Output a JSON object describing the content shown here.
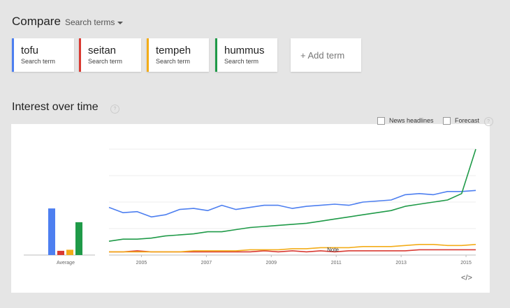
{
  "header": {
    "compare_title": "Compare",
    "search_terms_label": "Search terms"
  },
  "terms": [
    {
      "name": "tofu",
      "sub": "Search term",
      "color": "#4d7ff0"
    },
    {
      "name": "seitan",
      "sub": "Search term",
      "color": "#d93a32"
    },
    {
      "name": "tempeh",
      "sub": "Search term",
      "color": "#f3ac18"
    },
    {
      "name": "hummus",
      "sub": "Search term",
      "color": "#1f9a48"
    }
  ],
  "add_term_label": "+ Add term",
  "section": {
    "title": "Interest over time",
    "help": "?"
  },
  "options": {
    "news_headlines": "News headlines",
    "forecast": "Forecast",
    "forecast_help": "?"
  },
  "embed_label": "</>",
  "chart_data": {
    "type": "line",
    "x_start": 2004.0,
    "x_end": 2015.3,
    "ylim": [
      0,
      100
    ],
    "gridlines": true,
    "x_ticks": [
      "2005",
      "2007",
      "2009",
      "2011",
      "2013",
      "2015"
    ],
    "x_tick_values": [
      2005,
      2007,
      2009,
      2011,
      2013,
      2015
    ],
    "note": {
      "label": "Note",
      "x": 2010.9
    },
    "average": {
      "label": "Average",
      "values": [
        44,
        4,
        5,
        31
      ]
    },
    "series": [
      {
        "color": "#4d7ff0",
        "values": [
          45,
          40,
          41,
          36,
          38,
          43,
          44,
          42,
          47,
          43,
          45,
          47,
          47,
          44,
          46,
          47,
          48,
          47,
          50,
          51,
          52,
          57,
          58,
          57,
          60,
          60,
          61
        ]
      },
      {
        "color": "#d93a32",
        "values": [
          3,
          3,
          4,
          3,
          3,
          3,
          3,
          3,
          3,
          3,
          3,
          4,
          3,
          4,
          3,
          4,
          3,
          4,
          4,
          4,
          4,
          4,
          5,
          5,
          5,
          5,
          5
        ]
      },
      {
        "color": "#f3ac18",
        "values": [
          3,
          3,
          3,
          3,
          3,
          3,
          4,
          4,
          4,
          4,
          5,
          5,
          5,
          6,
          6,
          7,
          7,
          7,
          8,
          8,
          8,
          9,
          10,
          10,
          9,
          9,
          10
        ]
      },
      {
        "color": "#1f9a48",
        "values": [
          13,
          15,
          15,
          16,
          18,
          19,
          20,
          22,
          22,
          24,
          26,
          27,
          28,
          29,
          30,
          32,
          34,
          36,
          38,
          40,
          42,
          46,
          48,
          50,
          52,
          58,
          100
        ]
      }
    ]
  }
}
